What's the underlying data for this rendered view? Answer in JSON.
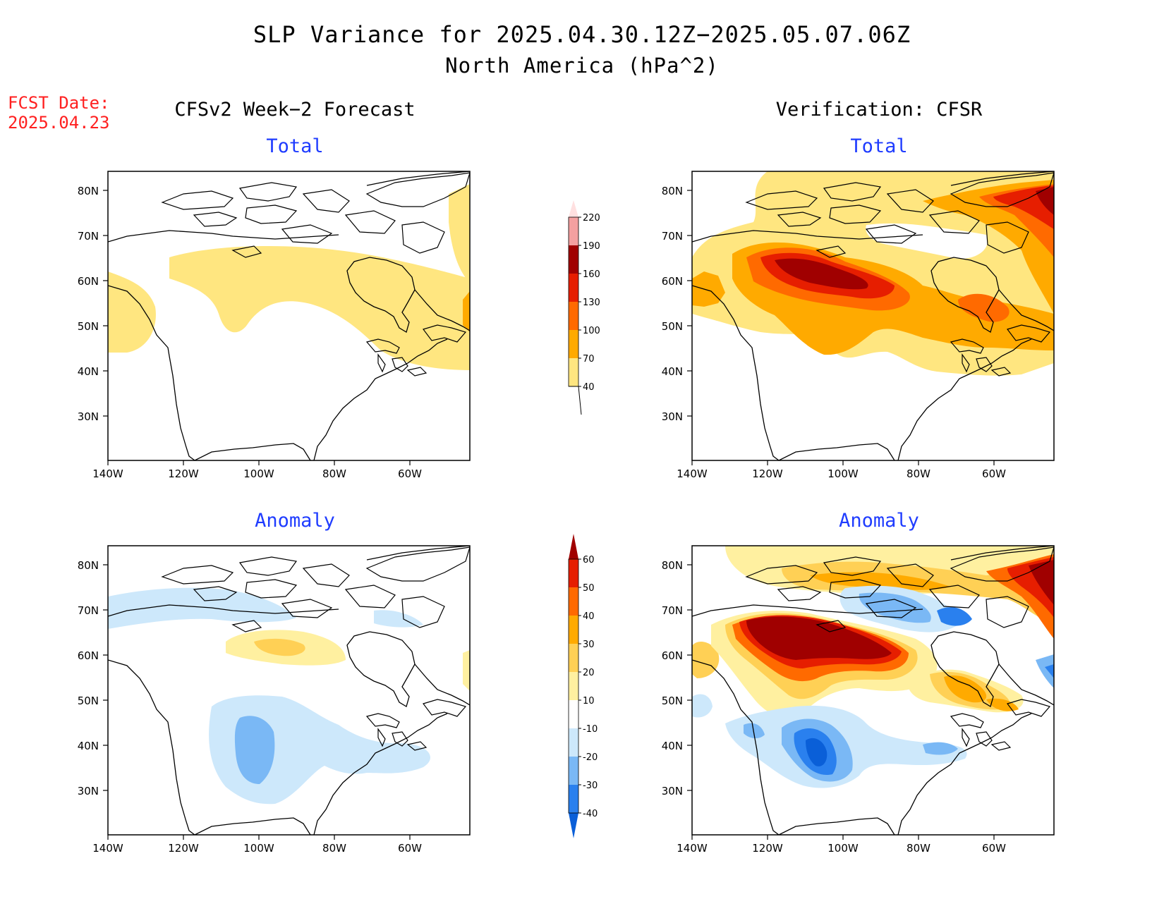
{
  "header": {
    "title": "SLP Variance for 2025.04.30.12Z−2025.05.07.06Z",
    "subtitle": "North America (hPa^2)",
    "fcst_label": "FCST Date:",
    "fcst_date": "2025.04.23"
  },
  "columns": {
    "left": "CFSv2 Week−2 Forecast",
    "right": "Verification: CFSR"
  },
  "panels": {
    "total": "Total",
    "anomaly": "Anomaly"
  },
  "axes": {
    "lat_ticks": [
      "80N",
      "70N",
      "60N",
      "50N",
      "40N",
      "30N"
    ],
    "lon_ticks": [
      "140W",
      "120W",
      "100W",
      "80W",
      "60W"
    ]
  },
  "colorbar_total": {
    "labels": [
      "40",
      "70",
      "100",
      "130",
      "160",
      "190",
      "220"
    ],
    "colors": [
      "#ffe680",
      "#ffaa00",
      "#ff6a00",
      "#e61e00",
      "#a00000",
      "#f4a0a0",
      "#ffe0e0"
    ]
  },
  "colorbar_anomaly": {
    "labels": [
      "-40",
      "-30",
      "-20",
      "-10",
      "10",
      "20",
      "30",
      "40",
      "50",
      "60"
    ],
    "colors": [
      "#0a5fd8",
      "#2a80ee",
      "#7ab8f5",
      "#cde8fb",
      "#ffffff",
      "#fff0a0",
      "#ffd055",
      "#ffaa00",
      "#ff6a00",
      "#e61e00",
      "#a00000"
    ]
  }
}
